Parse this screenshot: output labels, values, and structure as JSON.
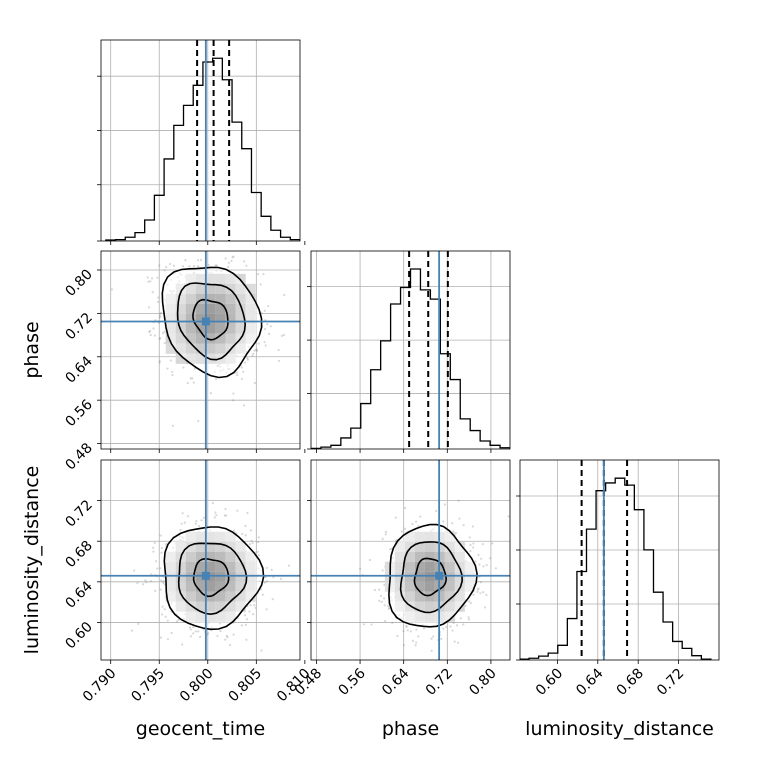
{
  "chart_data": {
    "type": "corner",
    "parameters": [
      "geocent_time",
      "phase",
      "luminosity_distance"
    ],
    "truths": {
      "geocent_time": 0.7998,
      "phase": 0.705,
      "luminosity_distance": 0.646
    },
    "colors": {
      "truth": "#4682b4",
      "hist": "#000000",
      "grid": "#b0b0b0",
      "points": "#8c8c8c"
    },
    "grid": true,
    "quantile_lines": "dashed",
    "geocent_time": {
      "range": [
        0.789,
        0.8095
      ],
      "ticks": [
        "0.790",
        "0.795",
        "0.800",
        "0.805",
        "0.810"
      ],
      "tick_values": [
        0.79,
        0.795,
        0.8,
        0.805,
        0.81
      ],
      "quantiles": [
        0.7989,
        0.8006,
        0.8022
      ],
      "hist_bins": [
        0.7895,
        0.8105
      ],
      "hist_counts": [
        0.2,
        0.3,
        0.8,
        1.8,
        4.5,
        9.8,
        17.6,
        24.8,
        29.1,
        33.4,
        38.4,
        39.2,
        34.6,
        25.5,
        19.8,
        10.4,
        5.3,
        2.3,
        0.8,
        0.3,
        0.1
      ]
    },
    "phase": {
      "range": [
        0.47,
        0.835
      ],
      "ticks": [
        "0.48",
        "0.56",
        "0.64",
        "0.72",
        "0.80"
      ],
      "tick_values": [
        0.48,
        0.56,
        0.64,
        0.72,
        0.8
      ],
      "quantiles": [
        0.65,
        0.685,
        0.721
      ],
      "hist_bins": [
        0.47,
        0.835
      ],
      "hist_counts": [
        0.1,
        0.3,
        0.6,
        1.8,
        3.4,
        7.4,
        12.9,
        17.6,
        23.6,
        26.3,
        29.3,
        25.9,
        24.4,
        15.5,
        11.3,
        4.9,
        3.0,
        1.3,
        0.6,
        0.2
      ]
    },
    "luminosity_distance": {
      "range": [
        0.563,
        0.76
      ],
      "ticks": [
        "0.60",
        "0.64",
        "0.68",
        "0.72"
      ],
      "tick_values": [
        0.6,
        0.64,
        0.68,
        0.72
      ],
      "quantiles": [
        0.624,
        0.646,
        0.669
      ],
      "hist_bins": [
        0.5625,
        0.752
      ],
      "hist_counts": [
        0.2,
        0.4,
        0.9,
        1.6,
        3.4,
        9.6,
        20.5,
        30.3,
        39.2,
        41.0,
        42.1,
        40.5,
        34.8,
        25.5,
        15.7,
        8.8,
        4.3,
        2.7,
        1.0,
        0.2
      ]
    },
    "pairs": [
      {
        "x": "geocent_time",
        "y": "phase",
        "mean": [
          0.8003,
          0.71
        ],
        "std": [
          0.0024,
          0.048
        ],
        "corr": -0.15
      },
      {
        "x": "geocent_time",
        "y": "luminosity_distance",
        "mean": [
          0.8003,
          0.645
        ],
        "std": [
          0.0024,
          0.024
        ],
        "corr": 0.0
      },
      {
        "x": "phase",
        "y": "luminosity_distance",
        "mean": [
          0.688,
          0.645
        ],
        "std": [
          0.038,
          0.024
        ],
        "corr": 0.05
      }
    ]
  }
}
